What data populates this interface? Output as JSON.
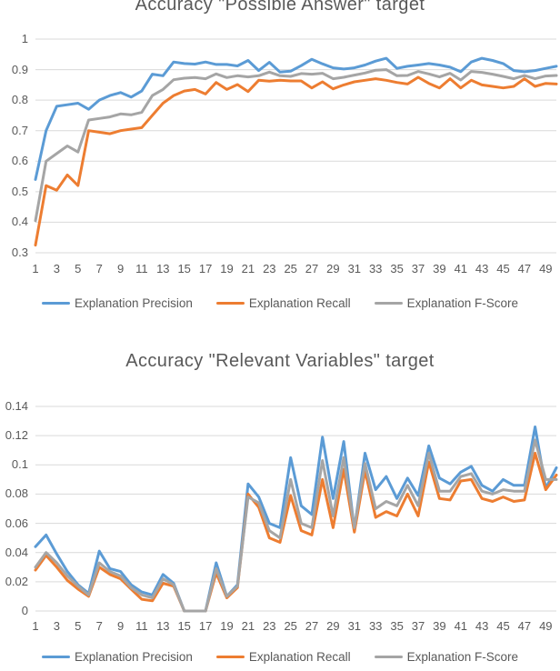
{
  "page": {
    "background": "#FFFFFF"
  },
  "styles": {
    "title_color": "#595959",
    "axis_label_color": "#595959",
    "legend_text_color": "#595959",
    "gridline_color": "#D9D9D9",
    "precision_color": "#5B9BD5",
    "recall_color": "#ED7D31",
    "fscore_color": "#A5A5A5"
  },
  "chart_data": [
    {
      "type": "line",
      "title": "Accuracy \"Possible Answer\" target",
      "grid": true,
      "legend_position": "bottom",
      "ylim": [
        0.3,
        1.0
      ],
      "y_tick_labels": [
        "1",
        "0.9",
        "0.8",
        "0.7",
        "0.6",
        "0.5",
        "0.4",
        "0.3"
      ],
      "x_tick_labels": [
        "1",
        "3",
        "5",
        "7",
        "9",
        "11",
        "13",
        "15",
        "17",
        "19",
        "21",
        "23",
        "25",
        "27",
        "29",
        "31",
        "33",
        "35",
        "37",
        "39",
        "41",
        "43",
        "45",
        "47",
        "49"
      ],
      "x": [
        1,
        2,
        3,
        4,
        5,
        6,
        7,
        8,
        9,
        10,
        11,
        12,
        13,
        14,
        15,
        16,
        17,
        18,
        19,
        20,
        21,
        22,
        23,
        24,
        25,
        26,
        27,
        28,
        29,
        30,
        31,
        32,
        33,
        34,
        35,
        36,
        37,
        38,
        39,
        40,
        41,
        42,
        43,
        44,
        45,
        46,
        47,
        48,
        49,
        50
      ],
      "series": [
        {
          "name": "Explanation Precision",
          "color": "#5B9BD5",
          "values": [
            0.54,
            0.7,
            0.78,
            0.785,
            0.79,
            0.77,
            0.8,
            0.815,
            0.825,
            0.81,
            0.83,
            0.885,
            0.88,
            0.925,
            0.92,
            0.918,
            0.925,
            0.917,
            0.917,
            0.912,
            0.93,
            0.897,
            0.924,
            0.892,
            0.895,
            0.913,
            0.934,
            0.919,
            0.906,
            0.902,
            0.906,
            0.915,
            0.928,
            0.937,
            0.904,
            0.911,
            0.915,
            0.92,
            0.915,
            0.908,
            0.893,
            0.925,
            0.937,
            0.93,
            0.92,
            0.897,
            0.893,
            0.897,
            0.904,
            0.911
          ]
        },
        {
          "name": "Explanation Recall",
          "color": "#ED7D31",
          "values": [
            0.325,
            0.52,
            0.505,
            0.555,
            0.52,
            0.7,
            0.695,
            0.69,
            0.7,
            0.705,
            0.71,
            0.75,
            0.79,
            0.815,
            0.83,
            0.835,
            0.82,
            0.858,
            0.835,
            0.851,
            0.828,
            0.865,
            0.862,
            0.865,
            0.863,
            0.863,
            0.84,
            0.86,
            0.837,
            0.85,
            0.86,
            0.865,
            0.87,
            0.865,
            0.858,
            0.853,
            0.875,
            0.855,
            0.84,
            0.87,
            0.84,
            0.865,
            0.85,
            0.845,
            0.84,
            0.845,
            0.87,
            0.845,
            0.855,
            0.853
          ]
        },
        {
          "name": "Explanation F-Score",
          "color": "#A5A5A5",
          "values": [
            0.405,
            0.6,
            0.625,
            0.65,
            0.63,
            0.735,
            0.74,
            0.745,
            0.755,
            0.752,
            0.76,
            0.815,
            0.835,
            0.867,
            0.872,
            0.874,
            0.87,
            0.886,
            0.874,
            0.88,
            0.876,
            0.88,
            0.892,
            0.88,
            0.878,
            0.887,
            0.885,
            0.888,
            0.87,
            0.875,
            0.882,
            0.889,
            0.898,
            0.9,
            0.88,
            0.881,
            0.894,
            0.886,
            0.876,
            0.888,
            0.866,
            0.894,
            0.891,
            0.885,
            0.878,
            0.87,
            0.881,
            0.87,
            0.879,
            0.881
          ]
        }
      ]
    },
    {
      "type": "line",
      "title": "Accuracy \"Relevant Variables\" target",
      "grid": true,
      "legend_position": "bottom",
      "ylim": [
        0,
        0.14
      ],
      "y_tick_labels": [
        "0.14",
        "0.12",
        "0.1",
        "0.08",
        "0.06",
        "0.04",
        "0.02",
        "0"
      ],
      "x_tick_labels": [
        "1",
        "3",
        "5",
        "7",
        "9",
        "11",
        "13",
        "15",
        "17",
        "19",
        "21",
        "23",
        "25",
        "27",
        "29",
        "31",
        "33",
        "35",
        "37",
        "39",
        "41",
        "43",
        "45",
        "47",
        "49"
      ],
      "x": [
        1,
        2,
        3,
        4,
        5,
        6,
        7,
        8,
        9,
        10,
        11,
        12,
        13,
        14,
        15,
        16,
        17,
        18,
        19,
        20,
        21,
        22,
        23,
        24,
        25,
        26,
        27,
        28,
        29,
        30,
        31,
        32,
        33,
        34,
        35,
        36,
        37,
        38,
        39,
        40,
        41,
        42,
        43,
        44,
        45,
        46,
        47,
        48,
        49,
        50
      ],
      "series": [
        {
          "name": "Explanation Precision",
          "color": "#5B9BD5",
          "values": [
            0.044,
            0.052,
            0.039,
            0.027,
            0.018,
            0.012,
            0.041,
            0.029,
            0.027,
            0.018,
            0.013,
            0.011,
            0.025,
            0.019,
            0,
            0,
            0,
            0.033,
            0.01,
            0.018,
            0.087,
            0.078,
            0.06,
            0.057,
            0.105,
            0.072,
            0.066,
            0.119,
            0.077,
            0.116,
            0.056,
            0.108,
            0.083,
            0.092,
            0.077,
            0.091,
            0.079,
            0.113,
            0.091,
            0.087,
            0.095,
            0.099,
            0.086,
            0.082,
            0.09,
            0.086,
            0.086,
            0.126,
            0.084,
            0.098
          ]
        },
        {
          "name": "Explanation Recall",
          "color": "#ED7D31",
          "values": [
            0.028,
            0.038,
            0.03,
            0.021,
            0.015,
            0.01,
            0.03,
            0.025,
            0.022,
            0.015,
            0.008,
            0.007,
            0.019,
            0.017,
            0,
            0,
            0,
            0.026,
            0.009,
            0.016,
            0.08,
            0.071,
            0.05,
            0.047,
            0.079,
            0.055,
            0.052,
            0.09,
            0.057,
            0.097,
            0.054,
            0.096,
            0.064,
            0.068,
            0.065,
            0.08,
            0.065,
            0.102,
            0.077,
            0.076,
            0.089,
            0.09,
            0.077,
            0.075,
            0.078,
            0.075,
            0.076,
            0.108,
            0.083,
            0.093
          ]
        },
        {
          "name": "Explanation F-Score",
          "color": "#A5A5A5",
          "values": [
            0.03,
            0.04,
            0.033,
            0.024,
            0.017,
            0.011,
            0.033,
            0.027,
            0.024,
            0.016,
            0.011,
            0.009,
            0.022,
            0.018,
            0,
            0,
            0,
            0.029,
            0.01,
            0.017,
            0.078,
            0.074,
            0.055,
            0.05,
            0.09,
            0.06,
            0.057,
            0.103,
            0.065,
            0.105,
            0.057,
            0.101,
            0.07,
            0.075,
            0.072,
            0.086,
            0.072,
            0.108,
            0.082,
            0.082,
            0.092,
            0.094,
            0.082,
            0.08,
            0.083,
            0.082,
            0.082,
            0.117,
            0.09,
            0.09
          ]
        }
      ]
    }
  ]
}
